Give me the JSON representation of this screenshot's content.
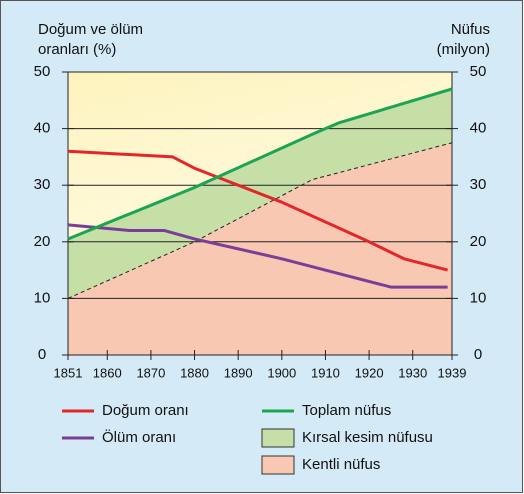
{
  "chart_data": {
    "type": "line",
    "y_label": [
      "Doğum ve ölüm",
      "oranları (%)"
    ],
    "y2_label": [
      "Nüfus",
      "(milyon)"
    ],
    "xlim": [
      1851,
      1939
    ],
    "xticks": [
      1851,
      1860,
      1870,
      1880,
      1890,
      1900,
      1910,
      1920,
      1930,
      1939
    ],
    "ylim": [
      0,
      50
    ],
    "yticks": [
      0,
      10,
      20,
      30,
      40,
      50
    ],
    "y2lim": [
      0,
      50
    ],
    "y2ticks": [
      0,
      10,
      20,
      30,
      40,
      50
    ],
    "grid": true,
    "series": [
      {
        "name": "Doğum oranı",
        "kind": "line",
        "color": "#e4262b",
        "axis": "y",
        "x": [
          1851,
          1875,
          1880,
          1900,
          1920,
          1928,
          1938
        ],
        "values": [
          36,
          35,
          33,
          27,
          20,
          17,
          15
        ]
      },
      {
        "name": "Ölüm oranı",
        "kind": "line",
        "color": "#7a3e98",
        "axis": "y",
        "x": [
          1851,
          1865,
          1873,
          1880,
          1900,
          1925,
          1930,
          1938
        ],
        "values": [
          23,
          22,
          22,
          20.5,
          17,
          12,
          12,
          12
        ]
      },
      {
        "name": "Toplam nüfus",
        "kind": "line",
        "color": "#1aa552",
        "axis": "y2",
        "x": [
          1851,
          1880,
          1907,
          1913,
          1939
        ],
        "values": [
          20.5,
          29.6,
          39,
          41,
          47
        ]
      },
      {
        "name": "Kırsal kesim nüfusu",
        "kind": "area",
        "color": "#c6dfa6",
        "axis": "y2",
        "stacked_on": "Kentli nüfus",
        "x": [
          1851,
          1880,
          1907,
          1913,
          1939
        ],
        "values": [
          10.5,
          9.6,
          8,
          8.8,
          9.5
        ]
      },
      {
        "name": "Kentli nüfus",
        "kind": "area",
        "color": "#f9c8b2",
        "axis": "y2",
        "dashed": true,
        "x": [
          1851,
          1880,
          1907,
          1913,
          1939
        ],
        "values": [
          10,
          20,
          31,
          32.2,
          37.5
        ]
      }
    ]
  }
}
